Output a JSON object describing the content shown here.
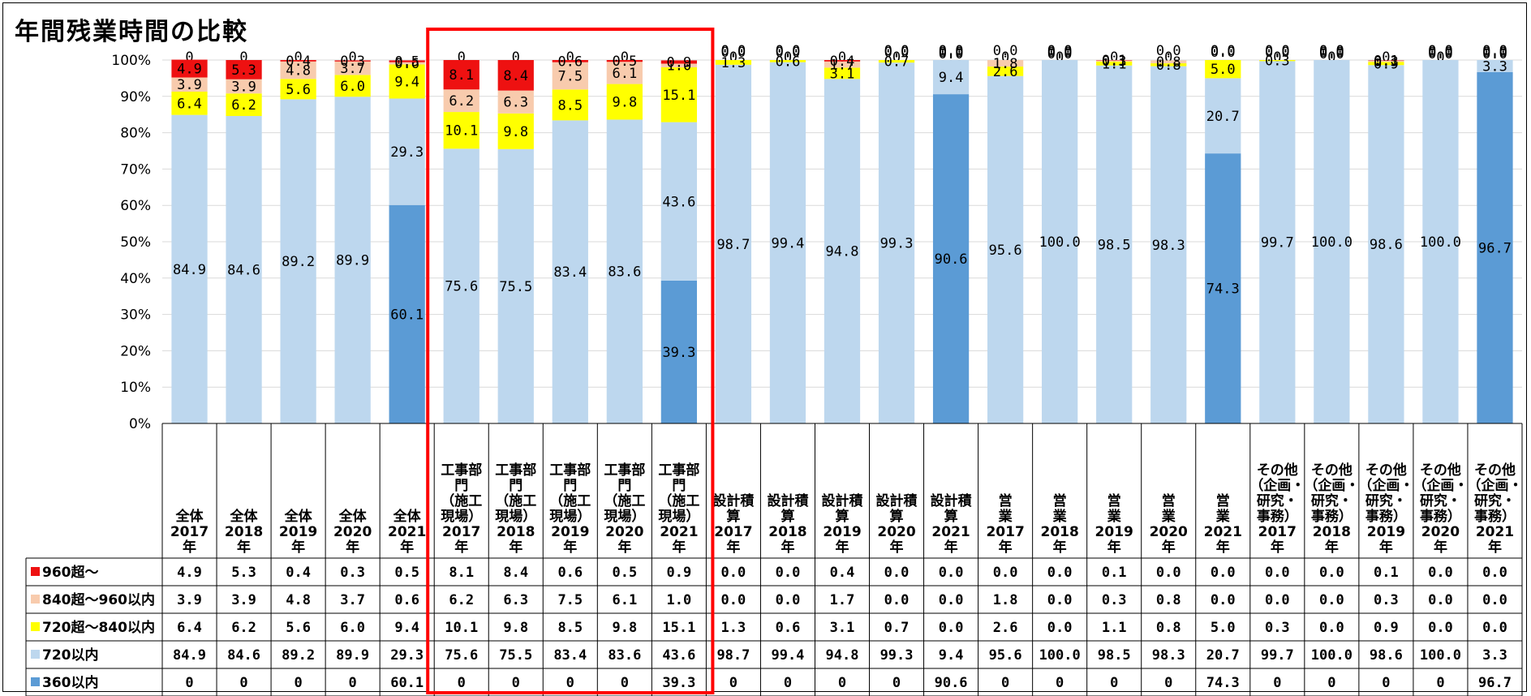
{
  "title": "年間残業時間の比較",
  "colors": {
    "over960": "#ee1111",
    "over840": "#f8cbad",
    "over720": "#ffff00",
    "under720": "#bdd7ee",
    "under360": "#5b9bd5",
    "highlight": "#ff0000"
  },
  "chart_data": {
    "type": "bar",
    "stacked": true,
    "percent": true,
    "ylim": [
      0,
      100
    ],
    "yticks": [
      "0%",
      "10%",
      "20%",
      "30%",
      "40%",
      "50%",
      "60%",
      "70%",
      "80%",
      "90%",
      "100%"
    ],
    "grid": true,
    "categories": [
      "全体\n2017\n年",
      "全体\n2018\n年",
      "全体\n2019\n年",
      "全体\n2020\n年",
      "全体\n2021\n年",
      "工事部\n門\n（施工\n現場）\n2017\n年",
      "工事部\n門\n（施工\n現場）\n2018\n年",
      "工事部\n門\n（施工\n現場）\n2019\n年",
      "工事部\n門\n（施工\n現場）\n2020\n年",
      "工事部\n門\n（施工\n現場）\n2021\n年",
      "設計積\n算\n2017\n年",
      "設計積\n算\n2018\n年",
      "設計積\n算\n2019\n年",
      "設計積\n算\n2020\n年",
      "設計積\n算\n2021\n年",
      "営\n業\n2017\n年",
      "営\n業\n2018\n年",
      "営\n業\n2019\n年",
      "営\n業\n2020\n年",
      "営\n業\n2021\n年",
      "その他\n（企画・\n研究・\n事務）\n2017\n年",
      "その他\n（企画・\n研究・\n事務）\n2018\n年",
      "その他\n（企画・\n研究・\n事務）\n2019\n年",
      "その他\n（企画・\n研究・\n事務）\n2020\n年",
      "その他\n（企画・\n研究・\n事務）\n2021\n年"
    ],
    "series": [
      {
        "name": "360以内",
        "color": "#5b9bd5",
        "values": [
          0,
          0,
          0,
          0,
          60.1,
          0,
          0,
          0,
          0,
          39.3,
          0,
          0,
          0,
          0,
          90.6,
          0,
          0,
          0,
          0,
          74.3,
          0,
          0,
          0,
          0,
          96.7
        ],
        "labels": [
          "0",
          "0",
          "0",
          "0",
          "60.1",
          "0",
          "0",
          "0",
          "0",
          "39.3",
          "0",
          "0",
          "0",
          "0",
          "90.6",
          "0",
          "0",
          "0",
          "0",
          "74.3",
          "0",
          "0",
          "0",
          "0",
          "96.7"
        ]
      },
      {
        "name": "720以内",
        "color": "#bdd7ee",
        "values": [
          84.9,
          84.6,
          89.2,
          89.9,
          29.3,
          75.6,
          75.5,
          83.4,
          83.6,
          43.6,
          98.7,
          99.4,
          94.8,
          99.3,
          9.4,
          95.6,
          100.0,
          98.5,
          98.3,
          20.7,
          99.7,
          100.0,
          98.6,
          100.0,
          3.3
        ],
        "labels": [
          "84.9",
          "84.6",
          "89.2",
          "89.9",
          "29.3",
          "75.6",
          "75.5",
          "83.4",
          "83.6",
          "43.6",
          "98.7",
          "99.4",
          "94.8",
          "99.3",
          "9.4",
          "95.6",
          "100.0",
          "98.5",
          "98.3",
          "20.7",
          "99.7",
          "100.0",
          "98.6",
          "100.0",
          "3.3"
        ]
      },
      {
        "name": "720超～840以内",
        "color": "#ffff00",
        "values": [
          6.4,
          6.2,
          5.6,
          6.0,
          9.4,
          10.1,
          9.8,
          8.5,
          9.8,
          15.1,
          1.3,
          0.6,
          3.1,
          0.7,
          0.0,
          2.6,
          0.0,
          1.1,
          0.8,
          5.0,
          0.3,
          0.0,
          0.9,
          0.0,
          0.0
        ],
        "labels": [
          "6.4",
          "6.2",
          "5.6",
          "6.0",
          "9.4",
          "10.1",
          "9.8",
          "8.5",
          "9.8",
          "15.1",
          "1.3",
          "0.6",
          "3.1",
          "0.7",
          "0.0",
          "2.6",
          "0.0",
          "1.1",
          "0.8",
          "5.0",
          "0.3",
          "0.0",
          "0.9",
          "0.0",
          "0.0"
        ]
      },
      {
        "name": "840超～960以内",
        "color": "#f8cbad",
        "values": [
          3.9,
          3.9,
          4.8,
          3.7,
          0.6,
          6.2,
          6.3,
          7.5,
          6.1,
          1.0,
          0.0,
          0.0,
          1.7,
          0.0,
          0.0,
          1.8,
          0.0,
          0.3,
          0.8,
          0.0,
          0.0,
          0.0,
          0.3,
          0.0,
          0.0
        ],
        "labels": [
          "3.9",
          "3.9",
          "4.8",
          "3.7",
          "0.6",
          "6.2",
          "6.3",
          "7.5",
          "6.1",
          "1.0",
          "0.0",
          "0.0",
          "1.7",
          "0.0",
          "0.0",
          "1.8",
          "0.0",
          "0.3",
          "0.8",
          "0.0",
          "0.0",
          "0.0",
          "0.3",
          "0.0",
          "0.0"
        ]
      },
      {
        "name": "960超～",
        "color": "#ee1111",
        "values": [
          4.9,
          5.3,
          0.4,
          0.3,
          0.5,
          8.1,
          8.4,
          0.6,
          0.5,
          0.9,
          0.0,
          0.0,
          0.4,
          0.0,
          0.0,
          0.0,
          0.0,
          0.1,
          0.0,
          0.0,
          0.0,
          0.0,
          0.1,
          0.0,
          0.0
        ],
        "labels": [
          "4.9",
          "5.3",
          "0.4",
          "0.3",
          "0.5",
          "8.1",
          "8.4",
          "0.6",
          "0.5",
          "0.9",
          "0.0",
          "0.0",
          "0.4",
          "0.0",
          "0.0",
          "0.0",
          "0.0",
          "0.1",
          "0.0",
          "0.0",
          "0.0",
          "0.0",
          "0.1",
          "0.0",
          "0.0"
        ]
      }
    ],
    "table_row_order": [
      "960超～",
      "840超～960以内",
      "720超～840以内",
      "720以内",
      "360以内"
    ],
    "highlight_group": "工事部門（施工現場）2017–2021"
  }
}
